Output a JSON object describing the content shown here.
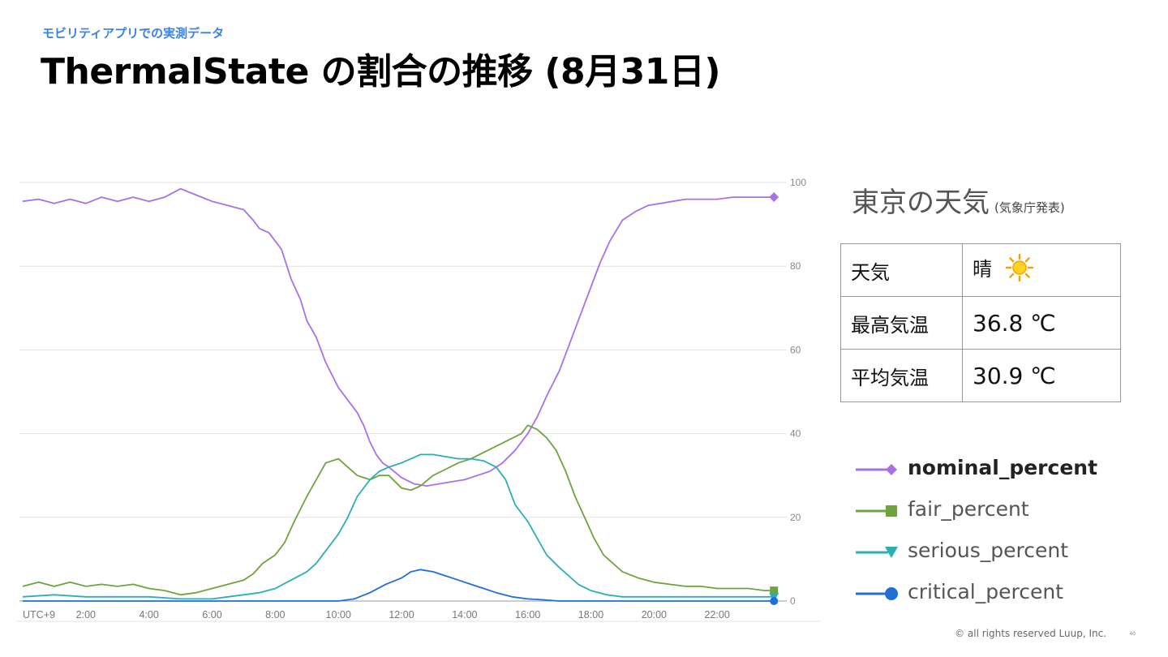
{
  "header": {
    "subtitle": "モビリティアプリでの実測データ",
    "title": "ThermalState の割合の推移 (8月31日)"
  },
  "weather": {
    "title": "東京の天気",
    "source": "(気象庁発表)",
    "rows": [
      {
        "label": "天気",
        "value": "晴",
        "icon": "sun-icon"
      },
      {
        "label": "最高気温",
        "value": "36.8 ℃"
      },
      {
        "label": "平均気温",
        "value": "30.9 ℃"
      }
    ]
  },
  "footer": {
    "copyright": "© all rights reserved Luup, Inc.",
    "page": "40"
  },
  "chart_data": {
    "type": "line",
    "x_unit": "hour",
    "xlim": [
      0,
      24
    ],
    "ylim": [
      0,
      100
    ],
    "y_ticks": [
      0,
      20,
      40,
      60,
      80,
      100
    ],
    "x_ticks": [
      {
        "x": 0,
        "label": "UTC+9"
      },
      {
        "x": 2,
        "label": "2:00"
      },
      {
        "x": 4,
        "label": "4:00"
      },
      {
        "x": 6,
        "label": "6:00"
      },
      {
        "x": 8,
        "label": "8:00"
      },
      {
        "x": 10,
        "label": "10:00"
      },
      {
        "x": 12,
        "label": "12:00"
      },
      {
        "x": 14,
        "label": "14:00"
      },
      {
        "x": 16,
        "label": "16:00"
      },
      {
        "x": 18,
        "label": "18:00"
      },
      {
        "x": 20,
        "label": "20:00"
      },
      {
        "x": 22,
        "label": "22:00"
      }
    ],
    "grid": true,
    "legend_position": "right",
    "series": [
      {
        "name": "nominal_percent",
        "color": "#a970e8",
        "marker": "diamond",
        "points": [
          [
            0,
            95.5
          ],
          [
            0.5,
            96
          ],
          [
            1,
            95
          ],
          [
            1.5,
            96
          ],
          [
            2,
            95
          ],
          [
            2.5,
            96.5
          ],
          [
            3,
            95.5
          ],
          [
            3.5,
            96.5
          ],
          [
            4,
            95.5
          ],
          [
            4.5,
            96.5
          ],
          [
            5,
            98.5
          ],
          [
            5.5,
            97
          ],
          [
            6,
            95.5
          ],
          [
            6.5,
            94.5
          ],
          [
            7,
            93.5
          ],
          [
            7.3,
            91
          ],
          [
            7.5,
            89
          ],
          [
            7.8,
            88
          ],
          [
            8.2,
            84
          ],
          [
            8.5,
            77
          ],
          [
            8.8,
            72
          ],
          [
            9,
            67
          ],
          [
            9.3,
            63
          ],
          [
            9.6,
            57
          ],
          [
            10,
            51
          ],
          [
            10.3,
            48
          ],
          [
            10.6,
            45
          ],
          [
            10.8,
            42
          ],
          [
            11,
            38
          ],
          [
            11.2,
            35
          ],
          [
            11.4,
            33
          ],
          [
            11.6,
            32
          ],
          [
            12,
            29.5
          ],
          [
            12.4,
            28
          ],
          [
            12.8,
            27.5
          ],
          [
            13.2,
            28
          ],
          [
            13.6,
            28.5
          ],
          [
            14,
            29
          ],
          [
            14.4,
            30
          ],
          [
            14.8,
            31
          ],
          [
            15.2,
            33
          ],
          [
            15.6,
            36
          ],
          [
            16,
            40
          ],
          [
            16.3,
            44
          ],
          [
            16.6,
            49
          ],
          [
            17,
            55
          ],
          [
            17.3,
            61
          ],
          [
            17.6,
            67
          ],
          [
            18,
            75
          ],
          [
            18.3,
            81
          ],
          [
            18.6,
            86
          ],
          [
            19,
            91
          ],
          [
            19.4,
            93
          ],
          [
            19.8,
            94.5
          ],
          [
            20.2,
            95
          ],
          [
            20.6,
            95.5
          ],
          [
            21,
            96
          ],
          [
            21.5,
            96
          ],
          [
            22,
            96
          ],
          [
            22.5,
            96.5
          ],
          [
            23,
            96.5
          ],
          [
            23.5,
            96.5
          ],
          [
            23.8,
            96.5
          ]
        ]
      },
      {
        "name": "fair_percent",
        "color": "#6fa33f",
        "marker": "square",
        "points": [
          [
            0,
            3.5
          ],
          [
            0.5,
            4.5
          ],
          [
            1,
            3.5
          ],
          [
            1.5,
            4.5
          ],
          [
            2,
            3.5
          ],
          [
            2.5,
            4
          ],
          [
            3,
            3.5
          ],
          [
            3.5,
            4
          ],
          [
            4,
            3
          ],
          [
            4.5,
            2.5
          ],
          [
            5,
            1.5
          ],
          [
            5.5,
            2
          ],
          [
            6,
            3
          ],
          [
            6.5,
            4
          ],
          [
            7,
            5
          ],
          [
            7.3,
            6.5
          ],
          [
            7.6,
            9
          ],
          [
            8,
            11
          ],
          [
            8.3,
            14
          ],
          [
            8.6,
            19
          ],
          [
            9,
            25
          ],
          [
            9.3,
            29
          ],
          [
            9.6,
            33
          ],
          [
            10,
            34
          ],
          [
            10.3,
            32
          ],
          [
            10.6,
            30
          ],
          [
            11,
            29
          ],
          [
            11.3,
            30
          ],
          [
            11.6,
            30
          ],
          [
            12,
            27
          ],
          [
            12.3,
            26.5
          ],
          [
            12.6,
            27.5
          ],
          [
            13,
            30
          ],
          [
            13.4,
            31.5
          ],
          [
            13.8,
            33
          ],
          [
            14.2,
            34
          ],
          [
            14.6,
            35.5
          ],
          [
            15,
            37
          ],
          [
            15.4,
            38.5
          ],
          [
            15.8,
            40
          ],
          [
            16,
            42
          ],
          [
            16.3,
            41
          ],
          [
            16.6,
            39
          ],
          [
            16.9,
            36
          ],
          [
            17.2,
            31
          ],
          [
            17.5,
            25
          ],
          [
            17.8,
            20
          ],
          [
            18.1,
            15
          ],
          [
            18.4,
            11
          ],
          [
            18.7,
            9
          ],
          [
            19,
            7
          ],
          [
            19.5,
            5.5
          ],
          [
            20,
            4.5
          ],
          [
            20.5,
            4
          ],
          [
            21,
            3.5
          ],
          [
            21.5,
            3.5
          ],
          [
            22,
            3
          ],
          [
            22.5,
            3
          ],
          [
            23,
            3
          ],
          [
            23.5,
            2.5
          ],
          [
            23.8,
            2.5
          ]
        ]
      },
      {
        "name": "serious_percent",
        "color": "#2bafb5",
        "marker": "triangle",
        "points": [
          [
            0,
            1
          ],
          [
            1,
            1.5
          ],
          [
            2,
            1
          ],
          [
            3,
            1
          ],
          [
            4,
            1
          ],
          [
            5,
            0.5
          ],
          [
            6,
            0.5
          ],
          [
            6.5,
            1
          ],
          [
            7,
            1.5
          ],
          [
            7.5,
            2
          ],
          [
            8,
            3
          ],
          [
            8.5,
            5
          ],
          [
            9,
            7
          ],
          [
            9.3,
            9
          ],
          [
            9.6,
            12
          ],
          [
            10,
            16
          ],
          [
            10.3,
            20
          ],
          [
            10.6,
            25
          ],
          [
            11,
            29
          ],
          [
            11.3,
            31
          ],
          [
            11.6,
            32
          ],
          [
            12,
            33
          ],
          [
            12.3,
            34
          ],
          [
            12.6,
            35
          ],
          [
            13,
            35
          ],
          [
            13.4,
            34.5
          ],
          [
            13.8,
            34
          ],
          [
            14.2,
            34
          ],
          [
            14.6,
            33.5
          ],
          [
            15,
            32
          ],
          [
            15.3,
            29
          ],
          [
            15.6,
            23
          ],
          [
            16,
            19
          ],
          [
            16.3,
            15
          ],
          [
            16.6,
            11
          ],
          [
            17,
            8
          ],
          [
            17.3,
            6
          ],
          [
            17.6,
            4
          ],
          [
            18,
            2.5
          ],
          [
            18.5,
            1.5
          ],
          [
            19,
            1
          ],
          [
            20,
            1
          ],
          [
            21,
            1
          ],
          [
            22,
            1
          ],
          [
            23,
            1
          ],
          [
            23.8,
            1
          ]
        ]
      },
      {
        "name": "critical_percent",
        "color": "#1f6fd6",
        "marker": "circle",
        "points": [
          [
            0,
            0
          ],
          [
            2,
            0
          ],
          [
            4,
            0
          ],
          [
            6,
            0
          ],
          [
            8,
            0
          ],
          [
            9,
            0
          ],
          [
            10,
            0
          ],
          [
            10.5,
            0.5
          ],
          [
            11,
            2
          ],
          [
            11.5,
            4
          ],
          [
            12,
            5.5
          ],
          [
            12.3,
            7
          ],
          [
            12.6,
            7.5
          ],
          [
            13,
            7
          ],
          [
            13.4,
            6
          ],
          [
            13.8,
            5
          ],
          [
            14.2,
            4
          ],
          [
            14.6,
            3
          ],
          [
            15,
            2
          ],
          [
            15.5,
            1
          ],
          [
            16,
            0.5
          ],
          [
            16.5,
            0.3
          ],
          [
            17,
            0
          ],
          [
            18,
            0
          ],
          [
            20,
            0
          ],
          [
            22,
            0
          ],
          [
            23.8,
            0
          ]
        ]
      }
    ]
  }
}
